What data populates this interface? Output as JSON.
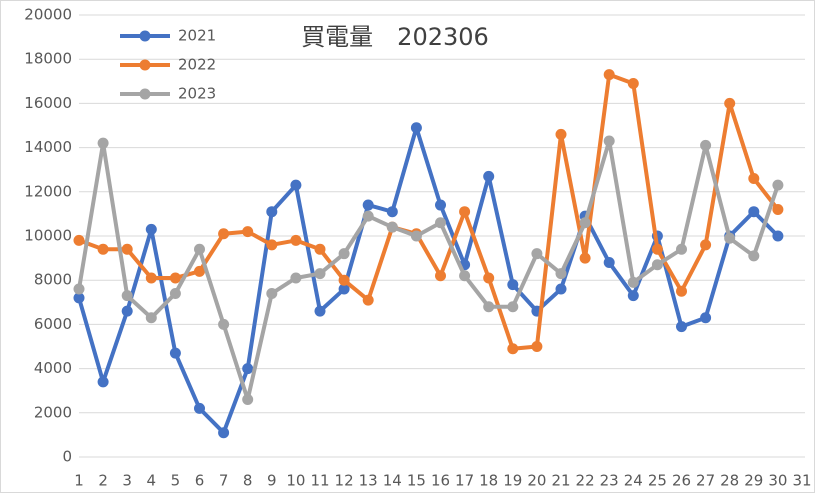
{
  "chart_data": {
    "type": "line",
    "title": "買電量　202306",
    "categories": [
      "1",
      "2",
      "3",
      "4",
      "5",
      "6",
      "7",
      "8",
      "9",
      "10",
      "11",
      "12",
      "13",
      "14",
      "15",
      "16",
      "17",
      "18",
      "19",
      "20",
      "21",
      "22",
      "23",
      "24",
      "25",
      "26",
      "27",
      "28",
      "29",
      "30",
      "31"
    ],
    "series": [
      {
        "name": "2021",
        "color": "#4472c4",
        "values": [
          7200,
          3400,
          6600,
          10300,
          4700,
          2200,
          1100,
          4000,
          11100,
          12300,
          6600,
          7600,
          11400,
          11100,
          14900,
          11400,
          8700,
          12700,
          7800,
          6600,
          7600,
          10900,
          8800,
          7300,
          10000,
          5900,
          6300,
          10000,
          11100,
          10000,
          null
        ]
      },
      {
        "name": "2022",
        "color": "#ed7d31",
        "values": [
          9800,
          9400,
          9400,
          8100,
          8100,
          8400,
          10100,
          10200,
          9600,
          9800,
          9400,
          8000,
          7100,
          10400,
          10100,
          8200,
          11100,
          8100,
          4900,
          5000,
          14600,
          9000,
          17300,
          16900,
          9400,
          7500,
          9600,
          16000,
          12600,
          11200,
          null
        ]
      },
      {
        "name": "2023",
        "color": "#a5a5a5",
        "values": [
          7600,
          14200,
          7300,
          6300,
          7400,
          9400,
          6000,
          2600,
          7400,
          8100,
          8300,
          9200,
          10900,
          10400,
          10000,
          10600,
          8200,
          6800,
          6800,
          9200,
          8300,
          10600,
          14300,
          7900,
          8700,
          9400,
          14100,
          9900,
          9100,
          12300,
          null
        ]
      }
    ],
    "ylim": [
      0,
      20000
    ],
    "yticks": [
      0,
      2000,
      4000,
      6000,
      8000,
      10000,
      12000,
      14000,
      16000,
      18000,
      20000
    ],
    "grid": true,
    "legend": "top-left"
  }
}
